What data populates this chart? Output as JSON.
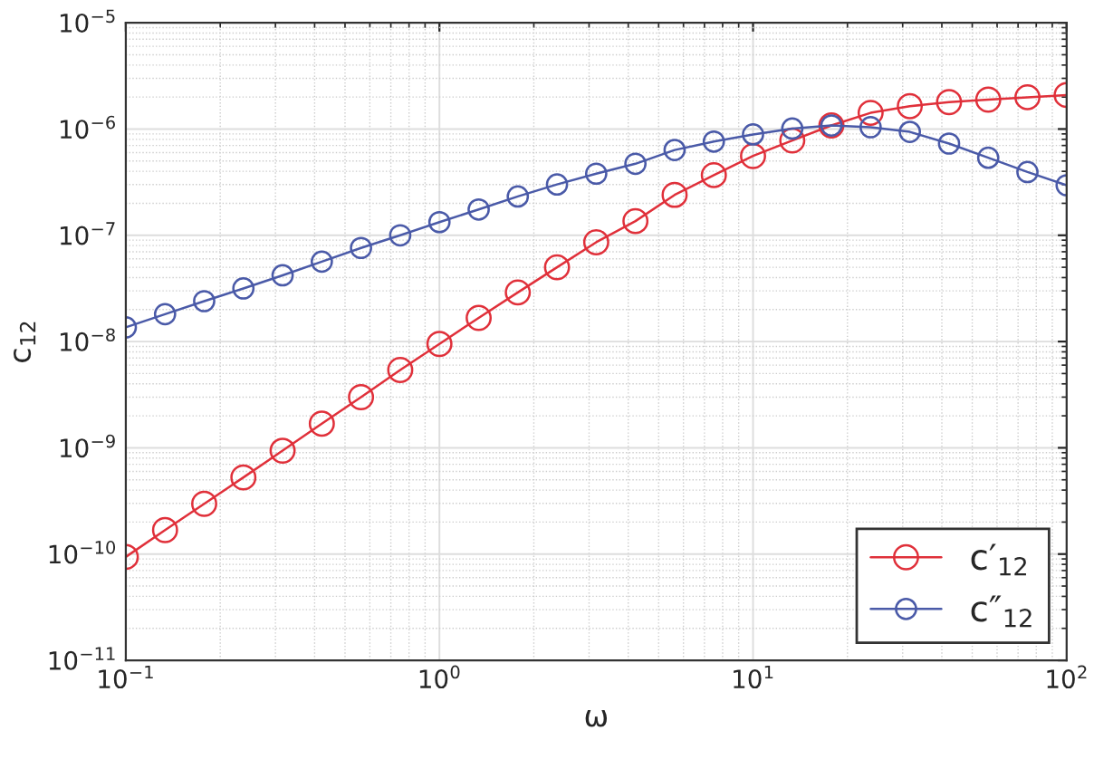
{
  "chart_data": {
    "type": "line",
    "xlabel": "ω",
    "ylabel": "c$_{12}$",
    "log": "xy",
    "x": [
      0.1,
      0.1334,
      0.1778,
      0.2371,
      0.3162,
      0.4217,
      0.5623,
      0.7499,
      1,
      1.334,
      1.778,
      2.371,
      3.162,
      4.217,
      5.623,
      7.499,
      10,
      13.34,
      17.78,
      23.71,
      31.62,
      42.17,
      56.23,
      74.99,
      100
    ],
    "series": [
      {
        "name": "c′$_{12}$",
        "color": "#e0303a",
        "values": [
          9.4e-11,
          1.68e-10,
          2.97e-10,
          5.26e-10,
          9.4e-10,
          1.69e-09,
          3e-09,
          5.4e-09,
          9.5e-09,
          1.67e-08,
          2.9e-08,
          5e-08,
          8.6e-08,
          1.36e-07,
          2.4e-07,
          3.68e-07,
          5.58e-07,
          7.8e-07,
          1.08e-06,
          1.42e-06,
          1.64e-06,
          1.79e-06,
          1.89e-06,
          1.99e-06,
          2.09e-06
        ]
      },
      {
        "name": "c″$_{12}$",
        "color": "#4a5aa8",
        "values": [
          1.36e-08,
          1.81e-08,
          2.4e-08,
          3.16e-08,
          4.2e-08,
          5.65e-08,
          7.6e-08,
          1e-07,
          1.33e-07,
          1.75e-07,
          2.32e-07,
          3.01e-07,
          3.8e-07,
          4.71e-07,
          6.35e-07,
          7.62e-07,
          8.9e-07,
          1.01e-06,
          1.08e-06,
          1.04e-06,
          9.4e-07,
          7.3e-07,
          5.37e-07,
          3.94e-07,
          2.96e-07
        ]
      }
    ],
    "xlim": [
      0.1,
      100
    ],
    "ylim": [
      1e-11,
      1e-05
    ],
    "xticks": [
      {
        "value": 0.1,
        "label": "10$^{−1}$"
      },
      {
        "value": 1,
        "label": "10$^{0}$"
      },
      {
        "value": 10,
        "label": "10$^{1}$"
      },
      {
        "value": 100,
        "label": "10$^{2}$"
      }
    ],
    "yticks": [
      {
        "value": 1e-11,
        "label": "10$^{−11}$"
      },
      {
        "value": 1e-10,
        "label": "10$^{−10}$"
      },
      {
        "value": 1e-09,
        "label": "10$^{−9}$"
      },
      {
        "value": 1e-08,
        "label": "10$^{−8}$"
      },
      {
        "value": 1e-07,
        "label": "10$^{−7}$"
      },
      {
        "value": 1e-06,
        "label": "10$^{−6}$"
      },
      {
        "value": 1e-05,
        "label": "10$^{−5}$"
      }
    ],
    "grid": true,
    "legend": "bottom right",
    "marker": "circle",
    "line_style": "solid"
  }
}
